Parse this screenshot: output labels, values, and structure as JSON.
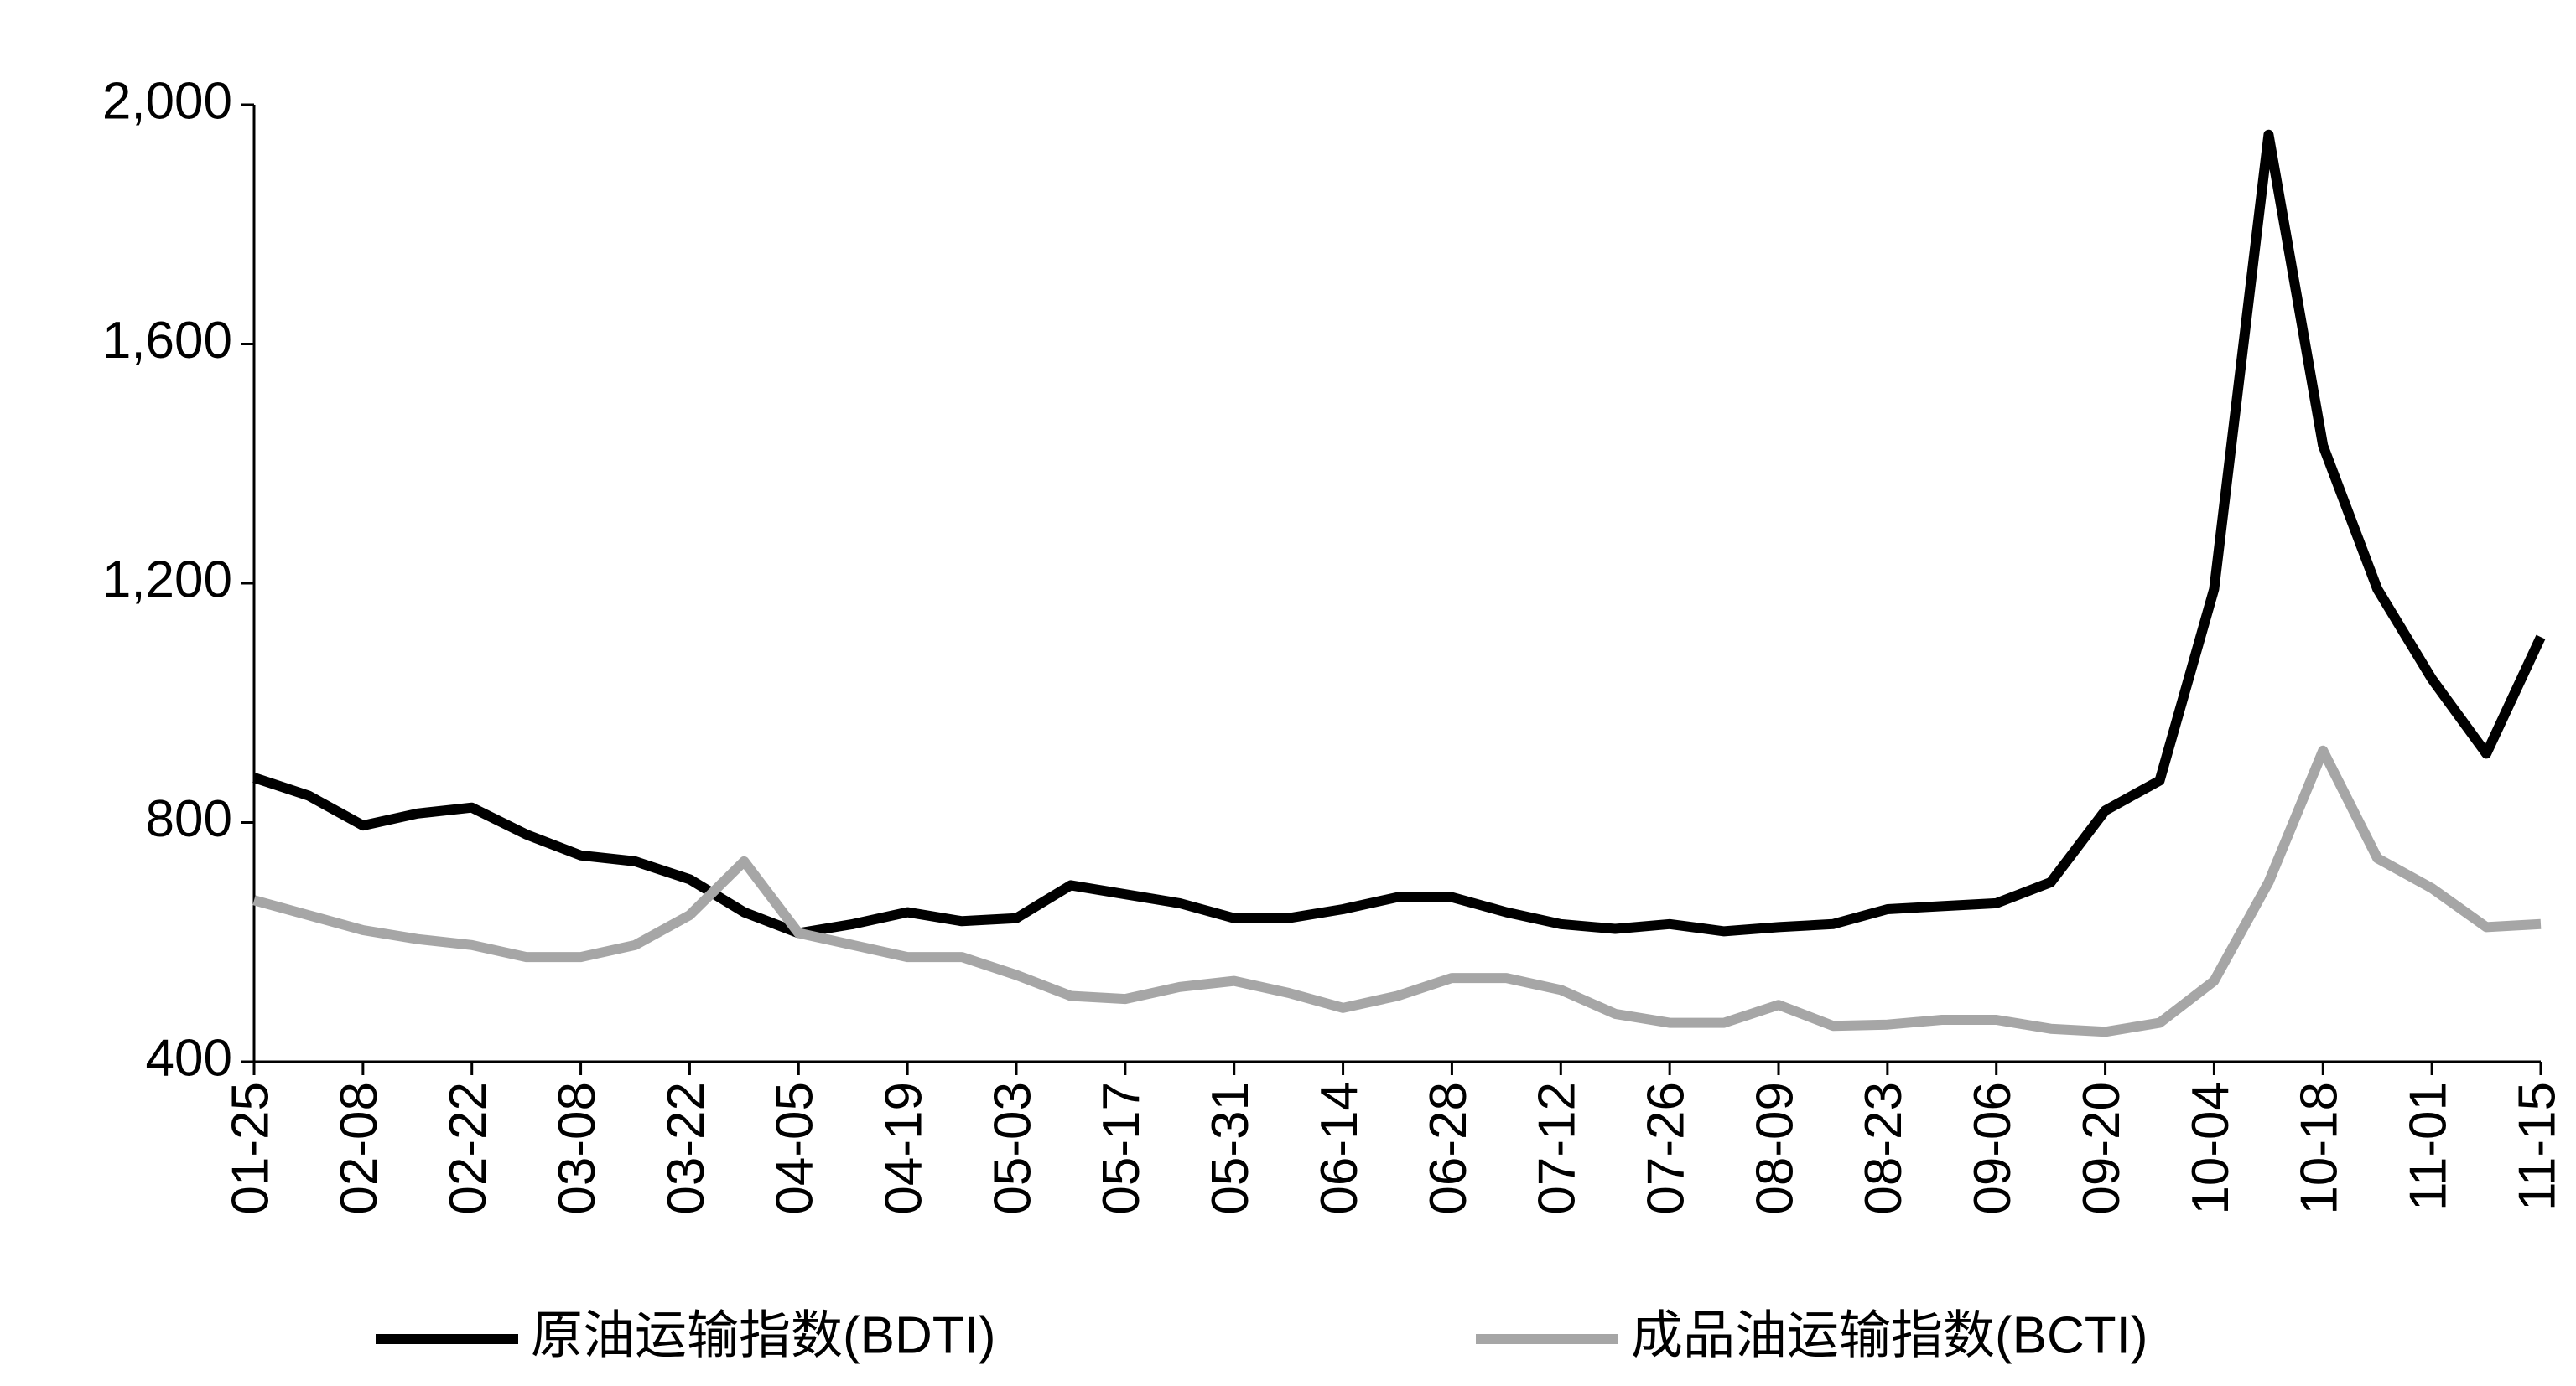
{
  "chart_data": {
    "type": "line",
    "categories": [
      "01-25",
      null,
      "02-08",
      null,
      "02-22",
      null,
      "03-08",
      null,
      "03-22",
      null,
      "04-05",
      null,
      "04-19",
      null,
      "05-03",
      null,
      "05-17",
      null,
      "05-31",
      null,
      "06-14",
      null,
      "06-28",
      null,
      "07-12",
      null,
      "07-26",
      null,
      "08-09",
      null,
      "08-23",
      null,
      "09-06",
      null,
      "09-20",
      null,
      "10-04",
      null,
      "10-18",
      null,
      "11-01",
      null,
      "11-15"
    ],
    "series": [
      {
        "name": "原油运输指数(BDTI)",
        "color": "#000000",
        "values": [
          875,
          845,
          795,
          815,
          825,
          780,
          745,
          735,
          705,
          650,
          615,
          630,
          650,
          635,
          640,
          695,
          680,
          665,
          640,
          640,
          655,
          675,
          675,
          650,
          630,
          622,
          630,
          618,
          625,
          630,
          655,
          660,
          665,
          700,
          820,
          870,
          1190,
          1950,
          1430,
          1190,
          1040,
          915,
          1110
        ]
      },
      {
        "name": "成品油运输指数(BCTI)",
        "color": "#a6a6a6",
        "values": [
          670,
          645,
          620,
          605,
          595,
          575,
          575,
          595,
          645,
          735,
          615,
          595,
          575,
          575,
          545,
          510,
          505,
          525,
          535,
          515,
          490,
          510,
          540,
          540,
          520,
          480,
          465,
          465,
          495,
          460,
          462,
          470,
          470,
          455,
          450,
          465,
          535,
          700,
          920,
          740,
          690,
          625,
          630
        ]
      }
    ],
    "ylim": [
      400,
      2000
    ],
    "yticks": [
      400,
      800,
      {
        "value": 1200,
        "label": "1,200"
      },
      {
        "value": 1600,
        "label": "1,600"
      },
      {
        "value": 2000,
        "label": "2,000"
      }
    ],
    "grid": false,
    "legend": "bottom"
  }
}
